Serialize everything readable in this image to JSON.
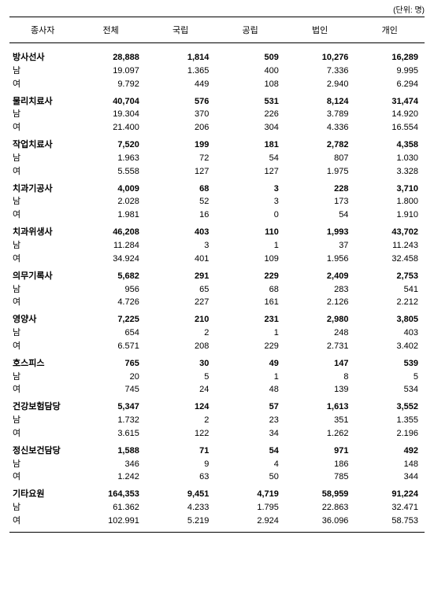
{
  "unit": "(단위: 명)",
  "columns": [
    "종사자",
    "전체",
    "국립",
    "공립",
    "법인",
    "개인"
  ],
  "sub_labels": {
    "male": "남",
    "female": "여"
  },
  "style": {
    "font_family": "Malgun Gothic / Batang",
    "header_fontsize_pt": 11,
    "body_fontsize_pt": 11,
    "border_color": "#000000",
    "background_color": "#ffffff",
    "text_color": "#000000",
    "total_row_bold": true,
    "number_alignment": "right",
    "thousand_separator_total": ",",
    "thousand_separator_sub": "."
  },
  "groups": [
    {
      "name": "방사선사",
      "total": {
        "전체": "28,888",
        "국립": "1,814",
        "공립": "509",
        "법인": "10,276",
        "개인": "16,289"
      },
      "male": {
        "전체": "19.097",
        "국립": "1.365",
        "공립": "400",
        "법인": "7.336",
        "개인": "9.995"
      },
      "female": {
        "전체": "9.792",
        "국립": "449",
        "공립": "108",
        "법인": "2.940",
        "개인": "6.294"
      }
    },
    {
      "name": "물리치료사",
      "total": {
        "전체": "40,704",
        "국립": "576",
        "공립": "531",
        "법인": "8,124",
        "개인": "31,474"
      },
      "male": {
        "전체": "19.304",
        "국립": "370",
        "공립": "226",
        "법인": "3.789",
        "개인": "14.920"
      },
      "female": {
        "전체": "21.400",
        "국립": "206",
        "공립": "304",
        "법인": "4.336",
        "개인": "16.554"
      }
    },
    {
      "name": "작업치료사",
      "total": {
        "전체": "7,520",
        "국립": "199",
        "공립": "181",
        "법인": "2,782",
        "개인": "4,358"
      },
      "male": {
        "전체": "1.963",
        "국립": "72",
        "공립": "54",
        "법인": "807",
        "개인": "1.030"
      },
      "female": {
        "전체": "5.558",
        "국립": "127",
        "공립": "127",
        "법인": "1.975",
        "개인": "3.328"
      }
    },
    {
      "name": "치과기공사",
      "total": {
        "전체": "4,009",
        "국립": "68",
        "공립": "3",
        "법인": "228",
        "개인": "3,710"
      },
      "male": {
        "전체": "2.028",
        "국립": "52",
        "공립": "3",
        "법인": "173",
        "개인": "1.800"
      },
      "female": {
        "전체": "1.981",
        "국립": "16",
        "공립": "0",
        "법인": "54",
        "개인": "1.910"
      }
    },
    {
      "name": "치과위생사",
      "total": {
        "전체": "46,208",
        "국립": "403",
        "공립": "110",
        "법인": "1,993",
        "개인": "43,702"
      },
      "male": {
        "전체": "11.284",
        "국립": "3",
        "공립": "1",
        "법인": "37",
        "개인": "11.243"
      },
      "female": {
        "전체": "34.924",
        "국립": "401",
        "공립": "109",
        "법인": "1.956",
        "개인": "32.458"
      }
    },
    {
      "name": "의무기록사",
      "total": {
        "전체": "5,682",
        "국립": "291",
        "공립": "229",
        "법인": "2,409",
        "개인": "2,753"
      },
      "male": {
        "전체": "956",
        "국립": "65",
        "공립": "68",
        "법인": "283",
        "개인": "541"
      },
      "female": {
        "전체": "4.726",
        "국립": "227",
        "공립": "161",
        "법인": "2.126",
        "개인": "2.212"
      }
    },
    {
      "name": "영양사",
      "total": {
        "전체": "7,225",
        "국립": "210",
        "공립": "231",
        "법인": "2,980",
        "개인": "3,805"
      },
      "male": {
        "전체": "654",
        "국립": "2",
        "공립": "1",
        "법인": "248",
        "개인": "403"
      },
      "female": {
        "전체": "6.571",
        "국립": "208",
        "공립": "229",
        "법인": "2.731",
        "개인": "3.402"
      }
    },
    {
      "name": "호스피스",
      "total": {
        "전체": "765",
        "국립": "30",
        "공립": "49",
        "법인": "147",
        "개인": "539"
      },
      "male": {
        "전체": "20",
        "국립": "5",
        "공립": "1",
        "법인": "8",
        "개인": "5"
      },
      "female": {
        "전체": "745",
        "국립": "24",
        "공립": "48",
        "법인": "139",
        "개인": "534"
      }
    },
    {
      "name": "건강보험담당",
      "total": {
        "전체": "5,347",
        "국립": "124",
        "공립": "57",
        "법인": "1,613",
        "개인": "3,552"
      },
      "male": {
        "전체": "1.732",
        "국립": "2",
        "공립": "23",
        "법인": "351",
        "개인": "1.355"
      },
      "female": {
        "전체": "3.615",
        "국립": "122",
        "공립": "34",
        "법인": "1.262",
        "개인": "2.196"
      }
    },
    {
      "name": "정신보건담당",
      "total": {
        "전체": "1,588",
        "국립": "71",
        "공립": "54",
        "법인": "971",
        "개인": "492"
      },
      "male": {
        "전체": "346",
        "국립": "9",
        "공립": "4",
        "법인": "186",
        "개인": "148"
      },
      "female": {
        "전체": "1.242",
        "국립": "63",
        "공립": "50",
        "법인": "785",
        "개인": "344"
      }
    },
    {
      "name": "기타요원",
      "total": {
        "전체": "164,353",
        "국립": "9,451",
        "공립": "4,719",
        "법인": "58,959",
        "개인": "91,224"
      },
      "male": {
        "전체": "61.362",
        "국립": "4.233",
        "공립": "1.795",
        "법인": "22.863",
        "개인": "32.471"
      },
      "female": {
        "전체": "102.991",
        "국립": "5.219",
        "공립": "2.924",
        "법인": "36.096",
        "개인": "58.753"
      }
    }
  ]
}
